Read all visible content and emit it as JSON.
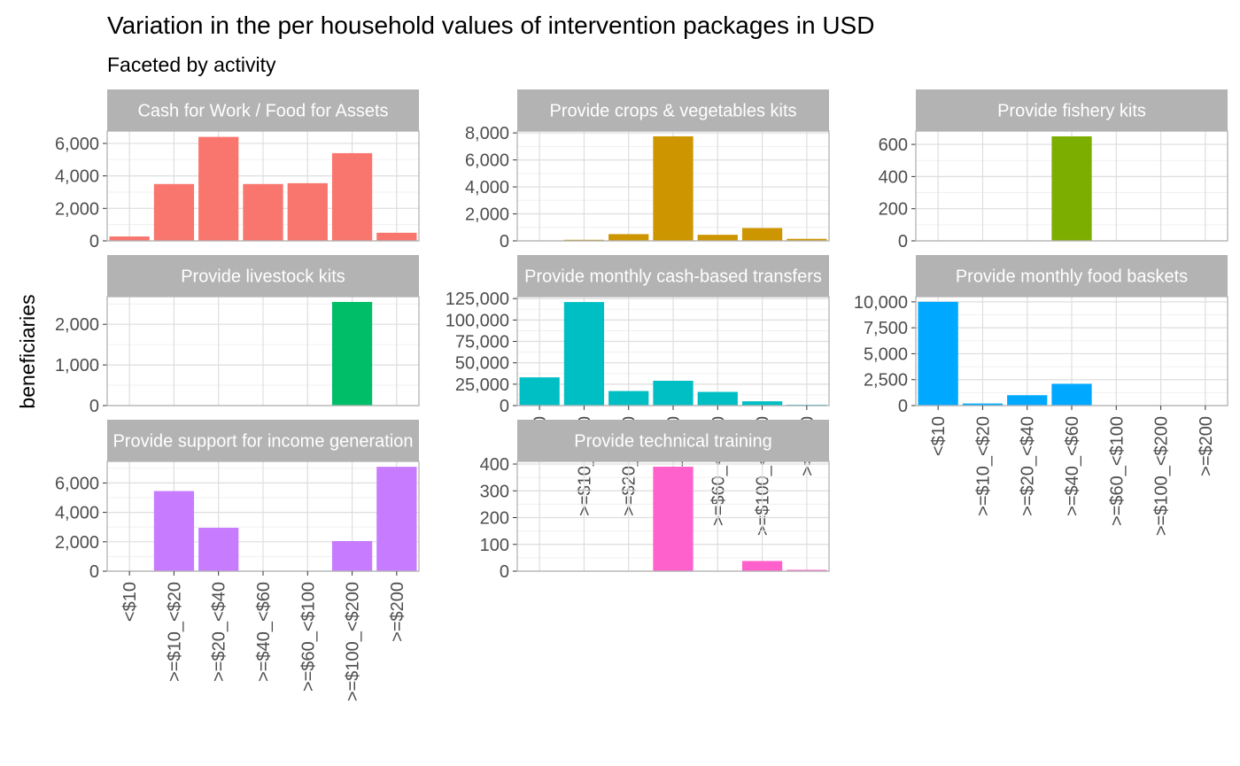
{
  "title": "Variation in the  per household values of intervention packages in USD",
  "subtitle": "Faceted by activity",
  "ylabel": "beneficiaries",
  "categories": [
    "<$10",
    ">=$10_<$20",
    ">=$20_<$40",
    ">=$40_<$60",
    ">=$60_<$100",
    ">=$100_<$200",
    ">=$200"
  ],
  "chart_data": {
    "type": "bar",
    "title": "Variation in the  per household values of intervention packages in USD",
    "subtitle": "Faceted by activity",
    "xlabel": "",
    "ylabel": "beneficiaries",
    "grid": true,
    "legend": "none",
    "facet_scales": "free_y",
    "categories": [
      "<$10",
      ">=$10_<$20",
      ">=$20_<$40",
      ">=$40_<$60",
      ">=$60_<$100",
      ">=$100_<$200",
      ">=$200"
    ],
    "facets": [
      {
        "label": "Cash for Work / Food for Assets",
        "color": "#F8766D",
        "values": [
          270,
          3500,
          6400,
          3500,
          3550,
          5400,
          500
        ],
        "ylim": [
          0,
          6760
        ],
        "yticks": [
          0,
          2000,
          4000,
          6000
        ],
        "ytick_labels": [
          "0",
          "2,000",
          "4,000",
          "6,000"
        ]
      },
      {
        "label": "Provide crops & vegetables kits",
        "color": "#CD9600",
        "values": [
          0,
          80,
          500,
          7750,
          450,
          950,
          150
        ],
        "ylim": [
          0,
          8140
        ],
        "yticks": [
          0,
          2000,
          4000,
          6000,
          8000
        ],
        "ytick_labels": [
          "0",
          "2,000",
          "4,000",
          "6,000",
          "8,000"
        ]
      },
      {
        "label": "Provide fishery kits",
        "color": "#7CAE00",
        "values": [
          0,
          0,
          0,
          650,
          0,
          0,
          0
        ],
        "ylim": [
          0,
          683
        ],
        "yticks": [
          0,
          200,
          400,
          600
        ],
        "ytick_labels": [
          "0",
          "200",
          "400",
          "600"
        ]
      },
      {
        "label": "Provide livestock kits",
        "color": "#00BE67",
        "values": [
          0,
          0,
          0,
          0,
          0,
          2550,
          0
        ],
        "ylim": [
          0,
          2680
        ],
        "yticks": [
          0,
          1000,
          2000
        ],
        "ytick_labels": [
          "0",
          "1,000",
          "2,000"
        ]
      },
      {
        "label": "Provide monthly cash-based transfers",
        "color": "#00BFC4",
        "values": [
          33000,
          121000,
          17000,
          29000,
          16000,
          5000,
          1000
        ],
        "ylim": [
          0,
          127300
        ],
        "yticks": [
          0,
          25000,
          50000,
          75000,
          100000,
          125000
        ],
        "ytick_labels": [
          "0",
          "25,000",
          "50,000",
          "75,000",
          "100,000",
          "125,000"
        ]
      },
      {
        "label": "Provide monthly food baskets",
        "color": "#00A9FF",
        "values": [
          10000,
          200,
          1000,
          2100,
          0,
          0,
          0
        ],
        "ylim": [
          0,
          10500
        ],
        "yticks": [
          0,
          2500,
          5000,
          7500,
          10000
        ],
        "ytick_labels": [
          "0",
          "2,500",
          "5,000",
          "7,500",
          "10,000"
        ]
      },
      {
        "label": "Provide support for income generation",
        "color": "#C77CFF",
        "values": [
          0,
          5450,
          2950,
          0,
          0,
          2050,
          7100
        ],
        "ylim": [
          0,
          7470
        ],
        "yticks": [
          0,
          2000,
          4000,
          6000
        ],
        "ytick_labels": [
          "0",
          "2,000",
          "4,000",
          "6,000"
        ]
      },
      {
        "label": "Provide technical training",
        "color": "#FF61CC",
        "values": [
          0,
          0,
          0,
          390,
          0,
          38,
          5
        ],
        "ylim": [
          0,
          410
        ],
        "yticks": [
          0,
          100,
          200,
          300,
          400
        ],
        "ytick_labels": [
          "0",
          "100",
          "200",
          "300",
          "400"
        ]
      }
    ]
  }
}
